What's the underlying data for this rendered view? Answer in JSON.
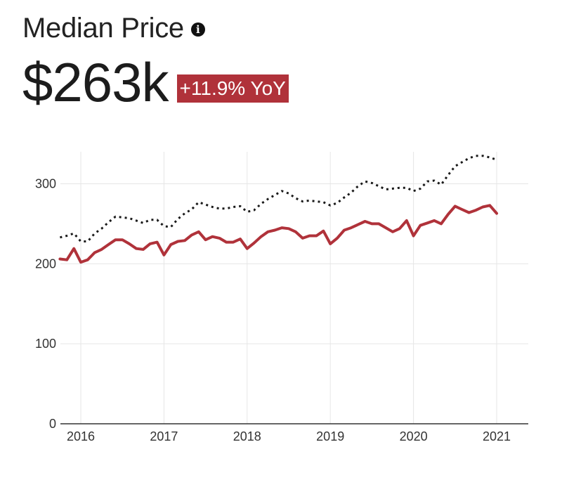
{
  "header": {
    "title": "Median Price",
    "info_icon": "info-icon",
    "value": "$263k",
    "change_badge": "+11.9% YoY"
  },
  "colors": {
    "series_primary": "#b0323a",
    "series_comparison": "#1a1a1a",
    "badge_bg": "#b0323a",
    "grid": "#e6e6e6",
    "axis": "#333333"
  },
  "chart_data": {
    "type": "line",
    "title": "",
    "xlabel": "",
    "ylabel": "",
    "ylim": [
      0,
      340
    ],
    "yticks": [
      0,
      100,
      200,
      300
    ],
    "xticks": [
      2016,
      2017,
      2018,
      2019,
      2020,
      2021
    ],
    "xlim": [
      2015.75,
      2021.4
    ],
    "grid": true,
    "series": [
      {
        "style": "solid",
        "color": "#b0323a",
        "x": [
          2015.75,
          2015.833,
          2015.917,
          2016.0,
          2016.083,
          2016.167,
          2016.25,
          2016.333,
          2016.417,
          2016.5,
          2016.583,
          2016.667,
          2016.75,
          2016.833,
          2016.917,
          2017.0,
          2017.083,
          2017.167,
          2017.25,
          2017.333,
          2017.417,
          2017.5,
          2017.583,
          2017.667,
          2017.75,
          2017.833,
          2017.917,
          2018.0,
          2018.083,
          2018.167,
          2018.25,
          2018.333,
          2018.417,
          2018.5,
          2018.583,
          2018.667,
          2018.75,
          2018.833,
          2018.917,
          2019.0,
          2019.083,
          2019.167,
          2019.25,
          2019.333,
          2019.417,
          2019.5,
          2019.583,
          2019.667,
          2019.75,
          2019.833,
          2019.917,
          2020.0,
          2020.083,
          2020.167,
          2020.25,
          2020.333,
          2020.417,
          2020.5,
          2020.583,
          2020.667,
          2020.75,
          2020.833,
          2020.917,
          2021.0
        ],
        "y": [
          206,
          205,
          219,
          202,
          205,
          214,
          218,
          224,
          230,
          230,
          225,
          219,
          218,
          225,
          227,
          211,
          224,
          228,
          229,
          236,
          240,
          230,
          234,
          232,
          227,
          227,
          231,
          219,
          226,
          234,
          240,
          242,
          245,
          244,
          240,
          232,
          235,
          235,
          241,
          225,
          232,
          242,
          245,
          249,
          253,
          250,
          250,
          245,
          240,
          244,
          254,
          235,
          248,
          251,
          254,
          250,
          262,
          272,
          268,
          264,
          267,
          271,
          273,
          263
        ]
      },
      {
        "style": "dotted",
        "color": "#1a1a1a",
        "x": [
          2015.75,
          2015.833,
          2015.917,
          2016.0,
          2016.083,
          2016.167,
          2016.25,
          2016.333,
          2016.417,
          2016.5,
          2016.583,
          2016.667,
          2016.75,
          2016.833,
          2016.917,
          2017.0,
          2017.083,
          2017.167,
          2017.25,
          2017.333,
          2017.417,
          2017.5,
          2017.583,
          2017.667,
          2017.75,
          2017.833,
          2017.917,
          2018.0,
          2018.083,
          2018.167,
          2018.25,
          2018.333,
          2018.417,
          2018.5,
          2018.583,
          2018.667,
          2018.75,
          2018.833,
          2018.917,
          2019.0,
          2019.083,
          2019.167,
          2019.25,
          2019.333,
          2019.417,
          2019.5,
          2019.583,
          2019.667,
          2019.75,
          2019.833,
          2019.917,
          2020.0,
          2020.083,
          2020.167,
          2020.25,
          2020.333,
          2020.417,
          2020.5,
          2020.583,
          2020.667,
          2020.75,
          2020.833,
          2020.917,
          2021.0
        ],
        "y": [
          233,
          235,
          238,
          228,
          228,
          238,
          244,
          252,
          259,
          258,
          257,
          254,
          251,
          255,
          255,
          247,
          246,
          256,
          263,
          268,
          277,
          274,
          271,
          269,
          269,
          271,
          272,
          265,
          267,
          275,
          281,
          286,
          291,
          288,
          282,
          278,
          279,
          278,
          277,
          273,
          276,
          283,
          289,
          297,
          303,
          301,
          297,
          293,
          294,
          295,
          295,
          291,
          294,
          303,
          304,
          299,
          311,
          322,
          327,
          332,
          335,
          335,
          333,
          330
        ]
      }
    ]
  }
}
